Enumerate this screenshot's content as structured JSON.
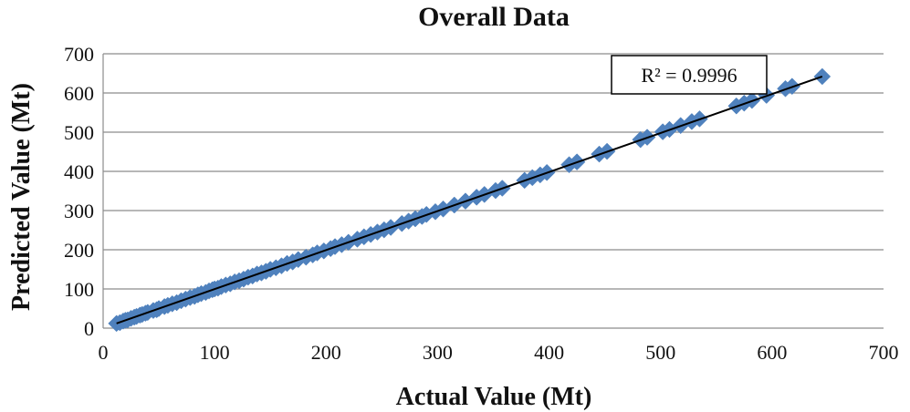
{
  "chart_data": {
    "type": "scatter",
    "title": "Overall Data",
    "xlabel": "Actual Value (Mt)",
    "ylabel": "Predicted Value (Mt)",
    "xlim": [
      0,
      700
    ],
    "ylim": [
      0,
      700
    ],
    "xticks": [
      "0",
      "100",
      "200",
      "300",
      "400",
      "500",
      "600",
      "700"
    ],
    "yticks": [
      "0",
      "100",
      "200",
      "300",
      "400",
      "500",
      "600",
      "700"
    ],
    "grid": "horizontal",
    "marker_color": "#4F81BD",
    "trendline": {
      "type": "linear",
      "x": [
        12,
        645
      ],
      "y": [
        12,
        642
      ]
    },
    "r_squared_label": "R² = 0.9996",
    "series": [
      {
        "x": [
          12,
          15,
          18,
          20,
          22,
          25,
          28,
          30,
          33,
          35,
          38,
          40,
          45,
          48,
          50,
          55,
          58,
          62,
          66,
          70,
          74,
          78,
          82,
          85,
          88,
          92,
          95,
          98,
          100,
          103,
          106,
          110,
          114,
          118,
          122,
          126,
          130,
          134,
          138,
          142,
          146,
          150,
          155,
          160,
          165,
          170,
          175,
          182,
          188,
          192,
          198,
          204,
          208,
          214,
          220,
          228,
          234,
          240,
          246,
          252,
          258,
          268,
          274,
          280,
          286,
          290,
          298,
          305,
          315,
          325,
          335,
          342,
          352,
          358,
          378,
          385,
          392,
          398,
          418,
          425,
          445,
          452,
          482,
          488,
          502,
          508,
          518,
          528,
          535,
          568,
          575,
          582,
          595,
          612,
          618,
          645
        ],
        "y": [
          12,
          14,
          18,
          20,
          21,
          25,
          28,
          30,
          33,
          35,
          38,
          40,
          45,
          47,
          50,
          55,
          58,
          62,
          65,
          70,
          74,
          78,
          81,
          85,
          88,
          91,
          95,
          98,
          100,
          102,
          106,
          110,
          113,
          118,
          121,
          125,
          130,
          133,
          138,
          141,
          145,
          150,
          154,
          159,
          165,
          169,
          175,
          181,
          187,
          192,
          197,
          203,
          208,
          213,
          219,
          227,
          233,
          239,
          245,
          251,
          257,
          267,
          273,
          279,
          285,
          290,
          297,
          304,
          314,
          324,
          334,
          341,
          351,
          357,
          377,
          384,
          391,
          397,
          417,
          424,
          444,
          451,
          481,
          487,
          501,
          507,
          517,
          527,
          534,
          567,
          574,
          581,
          594,
          611,
          617,
          642
        ]
      }
    ]
  }
}
